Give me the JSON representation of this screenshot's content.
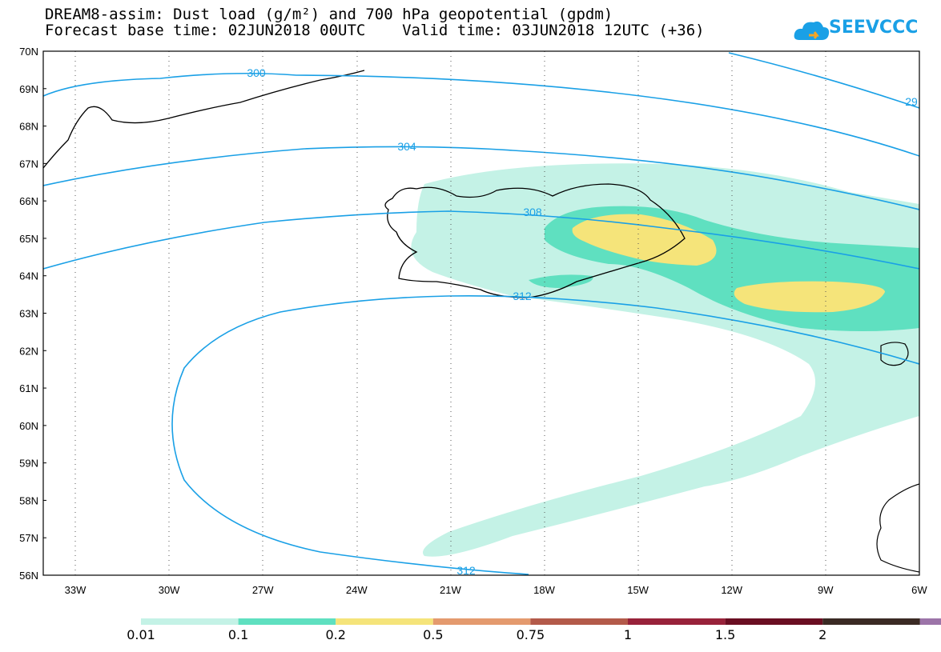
{
  "title": {
    "line1": "DREAM8-assim: Dust load (g/m²) and 700 hPa geopotential (gpdm)",
    "line2": "Forecast base time: 02JUN2018 00UTC    Valid time: 03JUN2018 12UTC (+36)"
  },
  "logo": {
    "text": "SEEVCCC",
    "icon": "cloud-icon"
  },
  "map": {
    "lat_labels": [
      "70N",
      "69N",
      "68N",
      "67N",
      "66N",
      "65N",
      "64N",
      "63N",
      "62N",
      "61N",
      "60N",
      "59N",
      "58N",
      "57N",
      "56N"
    ],
    "lon_labels": [
      "33W",
      "30W",
      "27W",
      "24W",
      "21W",
      "18W",
      "15W",
      "12W",
      "9W",
      "6W"
    ],
    "contour_labels": [
      "300",
      "304",
      "308",
      "312",
      "312",
      "29"
    ]
  },
  "colorbar": {
    "colors": [
      "#c4f2e6",
      "#5fe0c0",
      "#f5e47a",
      "#e49a6e",
      "#b35a4a",
      "#98223a",
      "#6a0e22",
      "#3a2a24",
      "#9c74a8"
    ],
    "labels": [
      "0.01",
      "0.1",
      "0.2",
      "0.5",
      "0.75",
      "1",
      "1.5",
      "2"
    ]
  }
}
